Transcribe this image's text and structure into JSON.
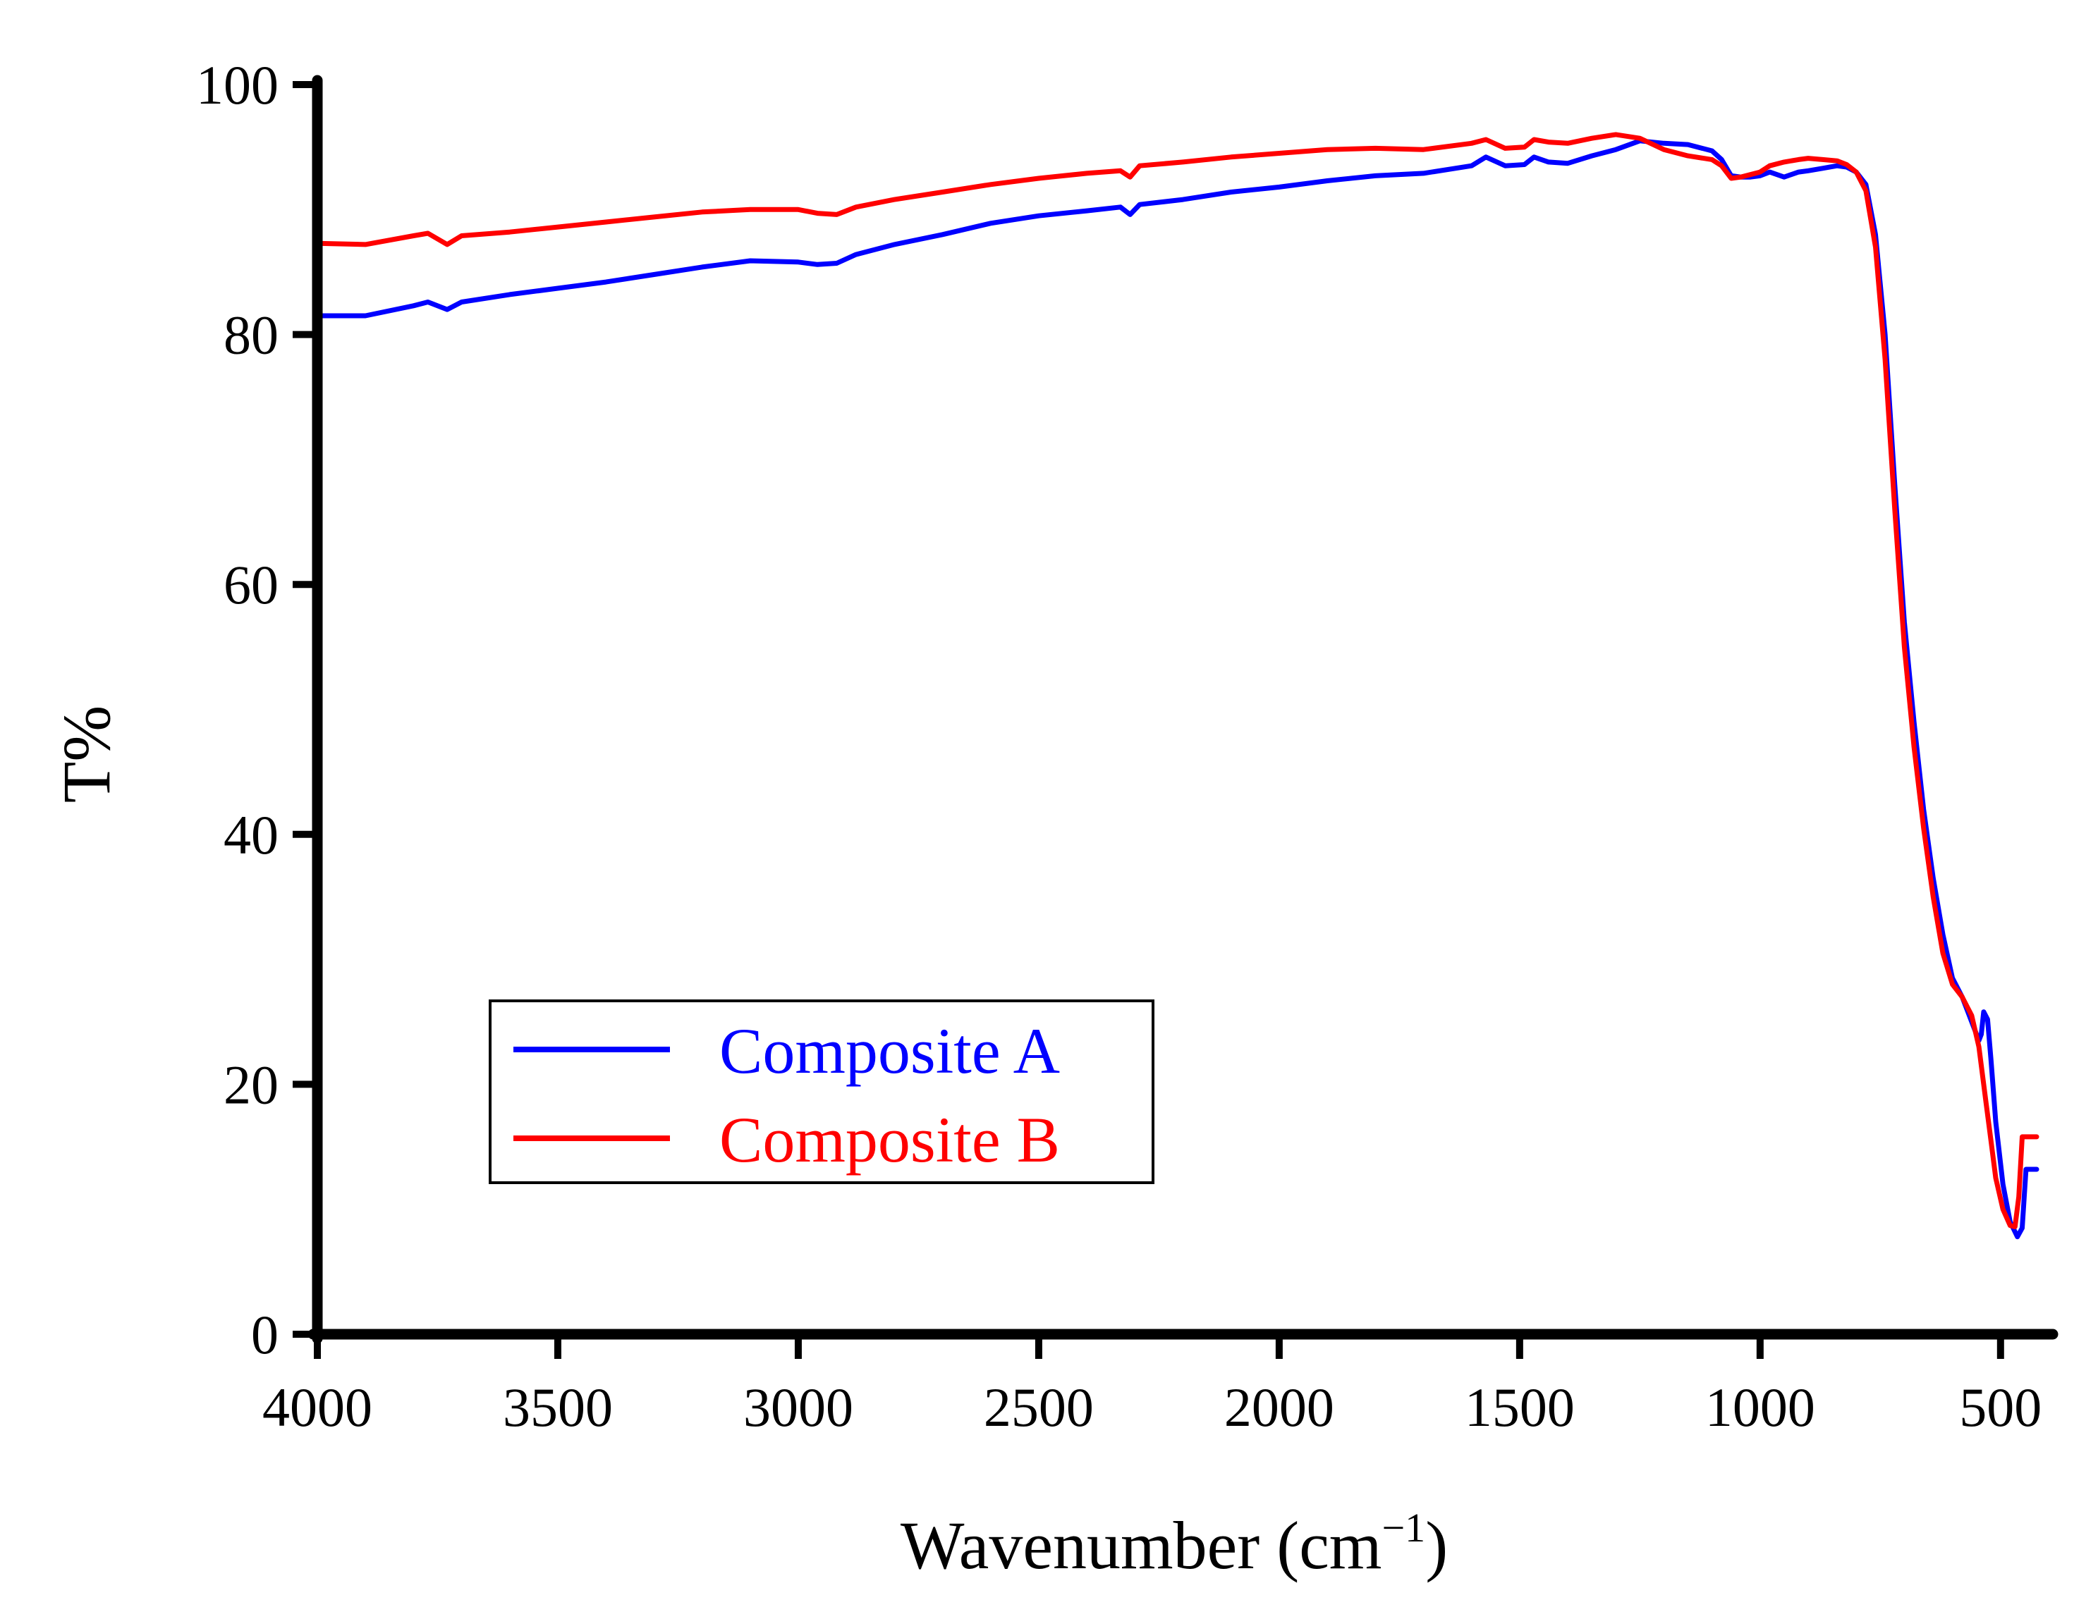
{
  "chart_data": {
    "type": "line",
    "xlabel": "Wavenumber (cm",
    "xlabel_superscript": "−1",
    "xlabel_close": ")",
    "ylabel": "T%",
    "xlim": [
      4000,
      400
    ],
    "ylim": [
      0,
      100
    ],
    "x_reversed": true,
    "xticks": [
      4000,
      3500,
      3000,
      2500,
      2000,
      1500,
      1000,
      500
    ],
    "yticks": [
      0,
      20,
      40,
      60,
      80,
      100
    ],
    "grid": false,
    "legend_position": "bottom-left",
    "series": [
      {
        "name": "Composite A",
        "color": "#0000ff",
        "x": [
          4000,
          3900,
          3800,
          3770,
          3730,
          3700,
          3600,
          3500,
          3400,
          3300,
          3200,
          3100,
          3000,
          2960,
          2920,
          2880,
          2800,
          2700,
          2600,
          2500,
          2400,
          2330,
          2310,
          2290,
          2200,
          2100,
          2000,
          1900,
          1800,
          1700,
          1600,
          1570,
          1530,
          1490,
          1470,
          1440,
          1400,
          1350,
          1300,
          1250,
          1200,
          1150,
          1100,
          1080,
          1060,
          1040,
          1020,
          1000,
          980,
          950,
          920,
          900,
          870,
          840,
          820,
          800,
          780,
          760,
          740,
          720,
          700,
          680,
          660,
          640,
          620,
          600,
          580,
          560,
          545,
          540,
          535,
          527,
          520,
          510,
          495,
          480,
          465,
          455,
          447,
          440,
          430,
          425
        ],
        "y": [
          81.5,
          81.5,
          82.3,
          82.6,
          82.0,
          82.6,
          83.2,
          83.7,
          84.2,
          84.8,
          85.4,
          85.9,
          85.8,
          85.6,
          85.7,
          86.4,
          87.2,
          88.0,
          88.9,
          89.5,
          89.9,
          90.2,
          89.6,
          90.4,
          90.8,
          91.4,
          91.8,
          92.3,
          92.7,
          92.9,
          93.5,
          94.2,
          93.5,
          93.6,
          94.2,
          93.8,
          93.7,
          94.3,
          94.8,
          95.5,
          95.3,
          95.2,
          94.7,
          94.0,
          92.7,
          92.6,
          92.6,
          92.7,
          93.0,
          92.6,
          93.0,
          93.1,
          93.3,
          93.5,
          93.4,
          93.0,
          92.0,
          88.0,
          80.0,
          68.0,
          57.0,
          49.0,
          42.0,
          36.5,
          32.0,
          28.5,
          27.0,
          25.0,
          23.5,
          24.0,
          25.8,
          25.2,
          22.0,
          17.0,
          12.0,
          9.0,
          7.8,
          8.5,
          13.2,
          13.2,
          13.2,
          13.2
        ]
      },
      {
        "name": "Composite B",
        "color": "#ff0000",
        "x": [
          4000,
          3900,
          3800,
          3770,
          3730,
          3700,
          3600,
          3500,
          3400,
          3300,
          3200,
          3100,
          3000,
          2960,
          2920,
          2880,
          2800,
          2700,
          2600,
          2500,
          2400,
          2330,
          2310,
          2290,
          2200,
          2100,
          2000,
          1900,
          1800,
          1700,
          1600,
          1570,
          1530,
          1490,
          1470,
          1440,
          1400,
          1350,
          1300,
          1250,
          1200,
          1150,
          1100,
          1080,
          1060,
          1040,
          1020,
          1000,
          980,
          950,
          920,
          900,
          870,
          840,
          820,
          800,
          780,
          760,
          740,
          720,
          700,
          680,
          660,
          640,
          620,
          600,
          580,
          560,
          545,
          540,
          530,
          520,
          510,
          495,
          480,
          470,
          462,
          455,
          448,
          440,
          430,
          425
        ],
        "y": [
          87.3,
          87.2,
          87.9,
          88.1,
          87.2,
          87.9,
          88.2,
          88.6,
          89.0,
          89.4,
          89.8,
          90.0,
          90.0,
          89.7,
          89.6,
          90.2,
          90.8,
          91.4,
          92.0,
          92.5,
          92.9,
          93.1,
          92.6,
          93.5,
          93.8,
          94.2,
          94.5,
          94.8,
          94.9,
          94.8,
          95.3,
          95.6,
          94.9,
          95.0,
          95.6,
          95.4,
          95.3,
          95.7,
          96.0,
          95.7,
          94.8,
          94.3,
          94.0,
          93.5,
          92.5,
          92.6,
          92.8,
          93.0,
          93.5,
          93.8,
          94.0,
          94.1,
          94.0,
          93.9,
          93.6,
          93.0,
          91.5,
          87.0,
          78.0,
          66.0,
          55.0,
          47.0,
          40.5,
          35.0,
          30.5,
          28.0,
          27.0,
          25.5,
          23.0,
          21.5,
          18.5,
          15.5,
          12.5,
          10.0,
          8.7,
          8.6,
          11.0,
          15.8,
          15.8,
          15.8,
          15.8,
          15.8
        ]
      }
    ]
  }
}
